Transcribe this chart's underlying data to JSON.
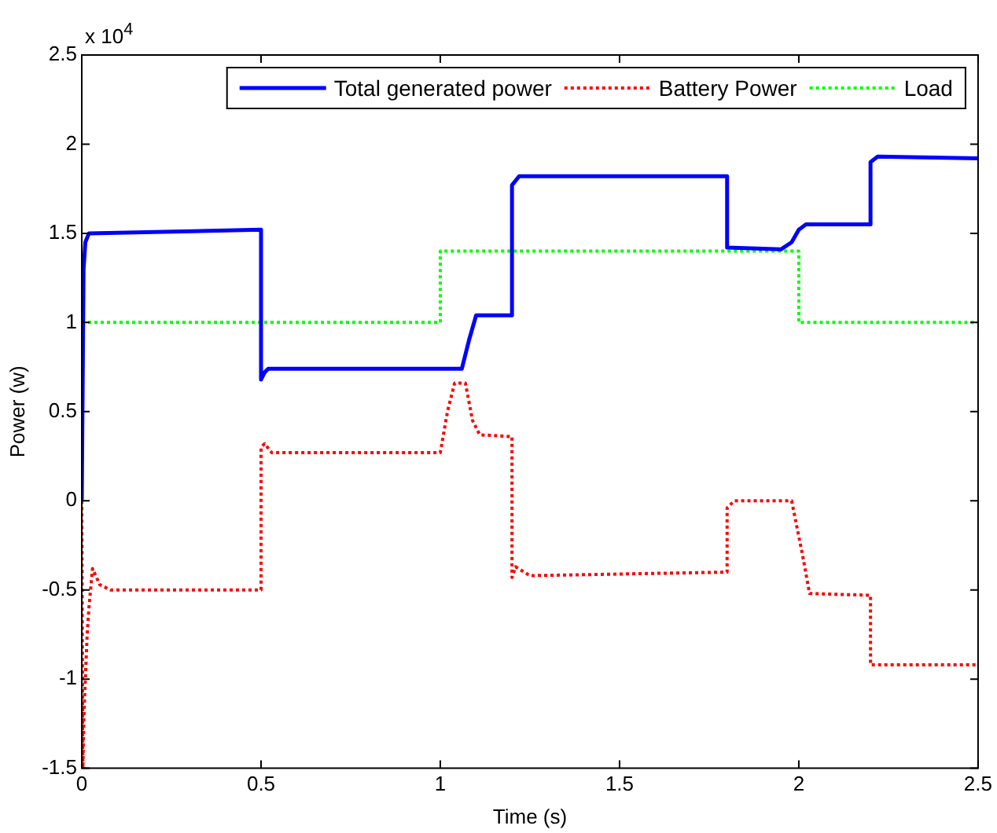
{
  "chart_data": {
    "type": "line",
    "xlabel": "Time (s)",
    "ylabel": "Power (w)",
    "annotations": [
      "x 10$^{4}$"
    ],
    "xlim": [
      0,
      2.5
    ],
    "xticks": [
      0,
      0.5,
      1,
      1.5,
      2,
      2.5
    ],
    "ylim": [
      -1.5,
      2.5
    ],
    "yticks": [
      -1.5,
      -1,
      -0.5,
      0,
      0.5,
      1,
      1.5,
      2,
      2.5
    ],
    "grid": false,
    "legend": "top right",
    "marker": "none",
    "series": [
      {
        "name": "Total generated power",
        "color": "#0000ff",
        "line_style": "solid",
        "x": [
          0,
          0.005,
          0.01,
          0.02,
          0.5,
          0.5,
          0.51,
          0.52,
          1.06,
          1.08,
          1.1,
          1.2,
          1.2,
          1.22,
          1.8,
          1.8,
          1.95,
          1.98,
          2.0,
          2.02,
          2.2,
          2.2,
          2.22,
          2.5
        ],
        "values": [
          0,
          1.3,
          1.45,
          1.5,
          1.52,
          0.68,
          0.72,
          0.74,
          0.74,
          0.9,
          1.04,
          1.04,
          1.77,
          1.82,
          1.82,
          1.42,
          1.41,
          1.45,
          1.52,
          1.55,
          1.55,
          1.9,
          1.93,
          1.92
        ]
      },
      {
        "name": "Battery Power",
        "color": "#ff0000",
        "line_style": "dotted",
        "x": [
          0,
          0.003,
          0.006,
          0.01,
          0.015,
          0.02,
          0.03,
          0.05,
          0.08,
          0.5,
          0.5,
          0.51,
          0.53,
          1.0,
          1.02,
          1.04,
          1.07,
          1.09,
          1.11,
          1.2,
          1.2,
          1.21,
          1.25,
          1.8,
          1.8,
          1.82,
          1.98,
          2.01,
          2.03,
          2.2,
          2.2,
          2.22,
          2.5
        ],
        "values": [
          0,
          -1.5,
          -1.2,
          -1.0,
          -0.75,
          -0.6,
          -0.38,
          -0.47,
          -0.5,
          -0.5,
          0.3,
          0.32,
          0.27,
          0.27,
          0.5,
          0.66,
          0.66,
          0.45,
          0.37,
          0.36,
          -0.43,
          -0.37,
          -0.42,
          -0.4,
          -0.04,
          0,
          0,
          -0.3,
          -0.52,
          -0.53,
          -0.92,
          -0.92,
          -0.92
        ]
      },
      {
        "name": "Load",
        "color": "#00ff00",
        "line_style": "dotted",
        "x": [
          0,
          1,
          1,
          2,
          2,
          2.5
        ],
        "values": [
          1,
          1,
          1.4,
          1.4,
          1,
          1
        ]
      }
    ]
  }
}
